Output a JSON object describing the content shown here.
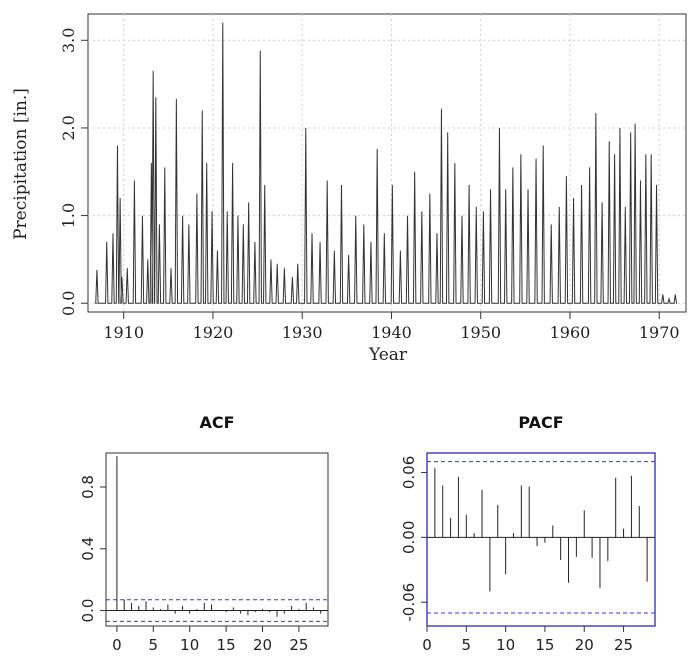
{
  "chart_data": [
    {
      "type": "line",
      "xlabel": "Year",
      "ylabel": "Precipitation [in.]",
      "xlim": [
        1906,
        1973
      ],
      "ylim": [
        -0.1,
        3.3
      ],
      "xticks": [
        1910,
        1920,
        1930,
        1940,
        1950,
        1960,
        1970
      ],
      "xtick_labels": [
        "1910",
        "1920",
        "1930",
        "1940",
        "1950",
        "1960",
        "1970"
      ],
      "yticks": [
        0.0,
        1.0,
        2.0,
        3.0
      ],
      "ytick_labels": [
        "0.0",
        "1.0",
        "2.0",
        "3.0"
      ],
      "grid": true,
      "series": [
        {
          "x": [
            1907.0,
            1907.2,
            1908.1,
            1908.8,
            1909.3,
            1909.6,
            1909.8,
            1910.4,
            1911.2,
            1912.1,
            1912.7,
            1913.1,
            1913.3,
            1913.6,
            1914.0,
            1914.6,
            1915.3,
            1915.9,
            1916.6,
            1917.3,
            1918.2,
            1918.8,
            1919.3,
            1919.9,
            1920.5,
            1921.1,
            1921.6,
            1922.2,
            1922.8,
            1923.4,
            1924.0,
            1924.7,
            1925.3,
            1925.8,
            1926.5,
            1927.2,
            1928.0,
            1928.9,
            1929.5,
            1930.4,
            1931.1,
            1932.0,
            1932.8,
            1933.6,
            1934.4,
            1935.2,
            1936.0,
            1936.9,
            1937.7,
            1938.4,
            1939.2,
            1940.1,
            1941.0,
            1941.8,
            1942.6,
            1943.4,
            1944.3,
            1945.1,
            1945.6,
            1946.3,
            1947.1,
            1947.9,
            1948.7,
            1949.5,
            1950.3,
            1951.1,
            1952.1,
            1952.8,
            1953.6,
            1954.5,
            1955.3,
            1956.2,
            1957.0,
            1957.9,
            1958.8,
            1959.6,
            1960.4,
            1961.3,
            1962.2,
            1962.9,
            1963.6,
            1964.4,
            1965.0,
            1965.6,
            1966.2,
            1966.8,
            1967.3,
            1967.9,
            1968.5,
            1969.1,
            1969.7,
            1970.4,
            1971.1,
            1971.8
          ],
          "y": [
            0.38,
            0.0,
            0.7,
            0.8,
            1.8,
            1.2,
            0.3,
            0.4,
            1.4,
            1.0,
            0.5,
            1.6,
            2.65,
            2.35,
            0.9,
            1.55,
            0.4,
            2.33,
            1.0,
            0.9,
            1.25,
            2.2,
            1.6,
            1.05,
            0.6,
            3.2,
            1.05,
            1.6,
            1.0,
            0.9,
            1.15,
            0.7,
            2.88,
            1.35,
            0.5,
            0.45,
            0.4,
            0.3,
            0.45,
            2.0,
            0.8,
            0.7,
            1.4,
            0.6,
            1.35,
            0.55,
            1.0,
            0.9,
            0.7,
            1.76,
            0.8,
            1.35,
            0.6,
            1.0,
            1.5,
            1.05,
            1.25,
            0.8,
            2.22,
            1.95,
            1.6,
            1.0,
            1.35,
            1.1,
            1.05,
            1.3,
            2.0,
            1.3,
            1.55,
            1.7,
            1.3,
            1.65,
            1.8,
            0.9,
            1.1,
            1.45,
            1.2,
            1.35,
            1.55,
            2.17,
            1.15,
            1.85,
            1.7,
            2.0,
            1.1,
            1.95,
            2.05,
            1.4,
            1.7,
            1.7,
            1.35,
            0.1,
            0.05,
            0.1
          ]
        }
      ]
    },
    {
      "type": "bar",
      "title": "ACF",
      "xlim": [
        -1.5,
        29
      ],
      "ylim": [
        -0.1,
        1.02
      ],
      "xticks": [
        0,
        5,
        10,
        15,
        20,
        25
      ],
      "xtick_labels": [
        "0",
        "5",
        "10",
        "15",
        "20",
        "25"
      ],
      "yticks": [
        0.0,
        0.4,
        0.8
      ],
      "ytick_labels": [
        "0.0",
        "0.4",
        "0.8"
      ],
      "confidence_band": [
        -0.07,
        0.07
      ],
      "lags": [
        0,
        1,
        2,
        3,
        4,
        5,
        6,
        7,
        8,
        9,
        10,
        11,
        12,
        13,
        14,
        15,
        16,
        17,
        18,
        19,
        20,
        21,
        22,
        23,
        24,
        25,
        26,
        27,
        28
      ],
      "values": [
        1.0,
        0.07,
        0.05,
        0.03,
        0.06,
        0.02,
        0.01,
        0.04,
        -0.02,
        0.03,
        -0.02,
        0.01,
        0.05,
        0.04,
        0.0,
        -0.01,
        0.02,
        -0.02,
        -0.03,
        -0.01,
        0.01,
        -0.01,
        -0.04,
        -0.02,
        0.03,
        0.01,
        0.05,
        0.02,
        -0.02
      ]
    },
    {
      "type": "bar",
      "title": "PACF",
      "xlim": [
        0,
        29
      ],
      "ylim": [
        -0.082,
        0.078
      ],
      "xticks": [
        0,
        5,
        10,
        15,
        20,
        25
      ],
      "xtick_labels": [
        "0",
        "5",
        "10",
        "15",
        "20",
        "25"
      ],
      "yticks": [
        -0.06,
        0.0,
        0.06
      ],
      "ytick_labels": [
        "-0.06",
        "0.00",
        "0.06"
      ],
      "confidence_band": [
        -0.07,
        0.07
      ],
      "lags": [
        1,
        2,
        3,
        4,
        5,
        6,
        7,
        8,
        9,
        10,
        11,
        12,
        13,
        14,
        15,
        16,
        17,
        18,
        19,
        20,
        21,
        22,
        23,
        24,
        25,
        26,
        27,
        28
      ],
      "values": [
        0.064,
        0.048,
        0.018,
        0.056,
        0.021,
        0.004,
        0.044,
        -0.05,
        0.03,
        -0.034,
        0.004,
        0.048,
        0.047,
        -0.008,
        -0.005,
        0.011,
        -0.021,
        -0.042,
        -0.018,
        0.025,
        -0.019,
        -0.047,
        -0.022,
        0.055,
        0.008,
        0.057,
        0.029,
        -0.041
      ]
    }
  ],
  "colors": {
    "line": "#333333",
    "grid": "#cccccc",
    "band": "#3333ff",
    "frame": "#333333",
    "pacf_frame": "#1a1aaa",
    "background": "#ffffff"
  }
}
